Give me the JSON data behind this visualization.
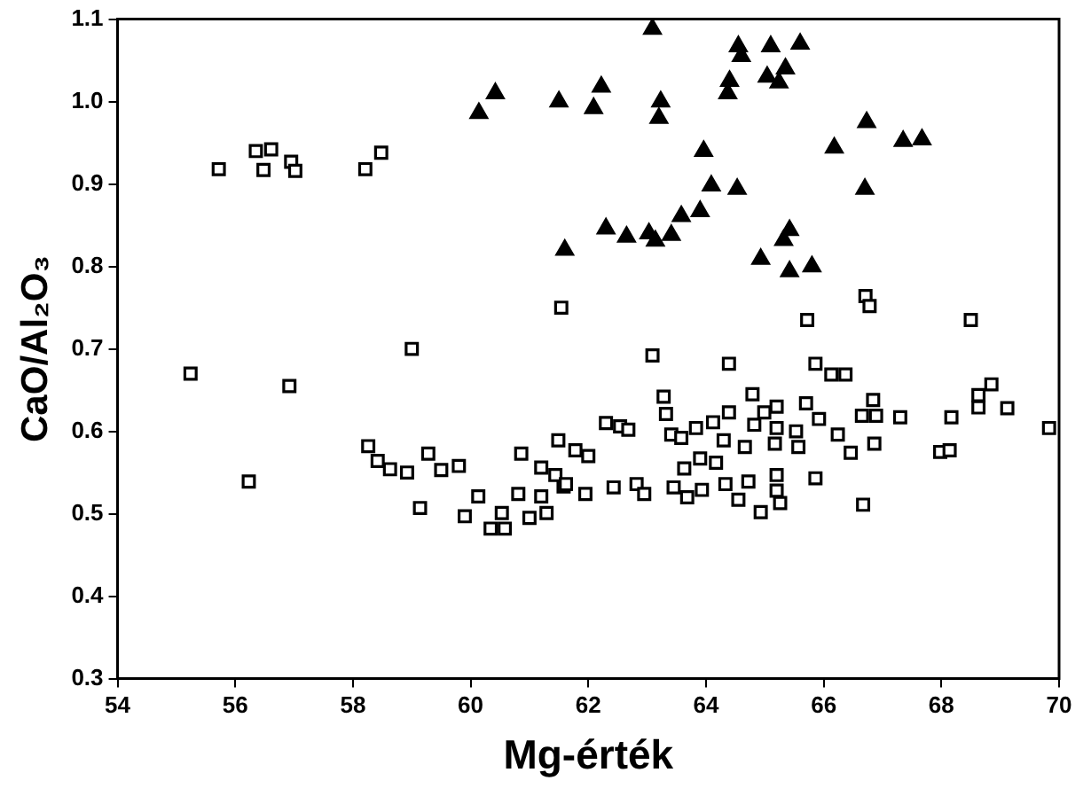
{
  "chart_data": {
    "type": "scatter",
    "xlabel": "Mg-érték",
    "ylabel": "CaO/Al₂O₃",
    "xlim": [
      54,
      70
    ],
    "xticks": [
      54,
      56,
      58,
      60,
      62,
      64,
      66,
      68,
      70
    ],
    "ylim": [
      0.3,
      1.1
    ],
    "yticks": [
      0.3,
      0.4,
      0.5,
      0.6,
      0.7,
      0.8,
      0.9,
      {
        "value": 1,
        "label": "1.0"
      },
      1.1
    ],
    "grid": false,
    "legend": false,
    "series": [
      {
        "marker": "square",
        "color": "#000000",
        "x": [
          55.72,
          56.35,
          56.61,
          56.48,
          56.95,
          57.02,
          58.21,
          58.48,
          61.54,
          59.0,
          55.24,
          56.92,
          56.23,
          58.26,
          58.42,
          58.63,
          58.92,
          59.28,
          59.5,
          59.8,
          59.14,
          59.9,
          60.13,
          60.34,
          60.58,
          60.53,
          60.81,
          60.86,
          61.0,
          61.2,
          61.29,
          61.2,
          61.49,
          61.44,
          61.58,
          61.78,
          62.0,
          61.62,
          61.95,
          62.3,
          62.54,
          62.68,
          62.43,
          62.82,
          62.95,
          63.28,
          63.32,
          63.41,
          63.58,
          63.45,
          63.68,
          63.63,
          63.83,
          63.9,
          63.93,
          64.12,
          64.17,
          64.3,
          64.39,
          64.33,
          64.55,
          64.66,
          64.72,
          64.79,
          64.82,
          64.93,
          64.99,
          65.2,
          65.2,
          65.17,
          65.2,
          65.26,
          65.2,
          65.53,
          65.57,
          65.7,
          65.92,
          65.86,
          66.24,
          66.46,
          66.65,
          66.84,
          66.89,
          66.86,
          66.67,
          67.3,
          67.98,
          68.14,
          68.17,
          68.63,
          68.85,
          68.63,
          69.12,
          69.83,
          63.09,
          64.39,
          65.72,
          66.71,
          66.78,
          68.5,
          65.86,
          66.13,
          66.37
        ],
        "values": [
          0.918,
          0.94,
          0.942,
          0.917,
          0.927,
          0.916,
          0.918,
          0.938,
          0.75,
          0.7,
          0.67,
          0.655,
          0.539,
          0.582,
          0.564,
          0.554,
          0.55,
          0.573,
          0.553,
          0.558,
          0.507,
          0.497,
          0.521,
          0.482,
          0.482,
          0.501,
          0.524,
          0.573,
          0.495,
          0.521,
          0.501,
          0.556,
          0.589,
          0.547,
          0.533,
          0.577,
          0.57,
          0.536,
          0.524,
          0.61,
          0.606,
          0.602,
          0.532,
          0.536,
          0.524,
          0.642,
          0.621,
          0.596,
          0.592,
          0.532,
          0.52,
          0.555,
          0.604,
          0.567,
          0.529,
          0.611,
          0.562,
          0.589,
          0.623,
          0.536,
          0.517,
          0.581,
          0.539,
          0.645,
          0.608,
          0.502,
          0.623,
          0.63,
          0.604,
          0.585,
          0.547,
          0.513,
          0.528,
          0.6,
          0.581,
          0.634,
          0.615,
          0.543,
          0.596,
          0.574,
          0.619,
          0.638,
          0.619,
          0.585,
          0.511,
          0.617,
          0.575,
          0.577,
          0.617,
          0.644,
          0.657,
          0.629,
          0.628,
          0.604,
          0.692,
          0.682,
          0.735,
          0.764,
          0.752,
          0.735,
          0.682,
          0.669,
          0.669
        ]
      },
      {
        "marker": "triangle",
        "color": "#000000",
        "x": [
          60.14,
          60.42,
          61.5,
          61.6,
          63.09,
          64.55,
          64.6,
          65.1,
          65.6,
          64.4,
          64.37,
          65.04,
          65.35,
          65.24,
          62.22,
          62.09,
          63.23,
          63.2,
          63.96,
          66.73,
          66.18,
          67.35,
          67.67,
          64.09,
          64.53,
          66.7,
          62.3,
          62.65,
          63.03,
          63.14,
          63.41,
          63.58,
          63.9,
          65.42,
          65.32,
          64.93,
          65.42,
          65.8
        ],
        "values": [
          0.986,
          1.01,
          1.0,
          0.82,
          1.088,
          1.067,
          1.055,
          1.067,
          1.07,
          1.025,
          1.01,
          1.03,
          1.04,
          1.023,
          1.018,
          0.992,
          1.0,
          0.98,
          0.94,
          0.975,
          0.944,
          0.952,
          0.954,
          0.898,
          0.894,
          0.894,
          0.846,
          0.836,
          0.84,
          0.831,
          0.838,
          0.861,
          0.867,
          0.844,
          0.832,
          0.809,
          0.794,
          0.8
        ]
      }
    ]
  }
}
